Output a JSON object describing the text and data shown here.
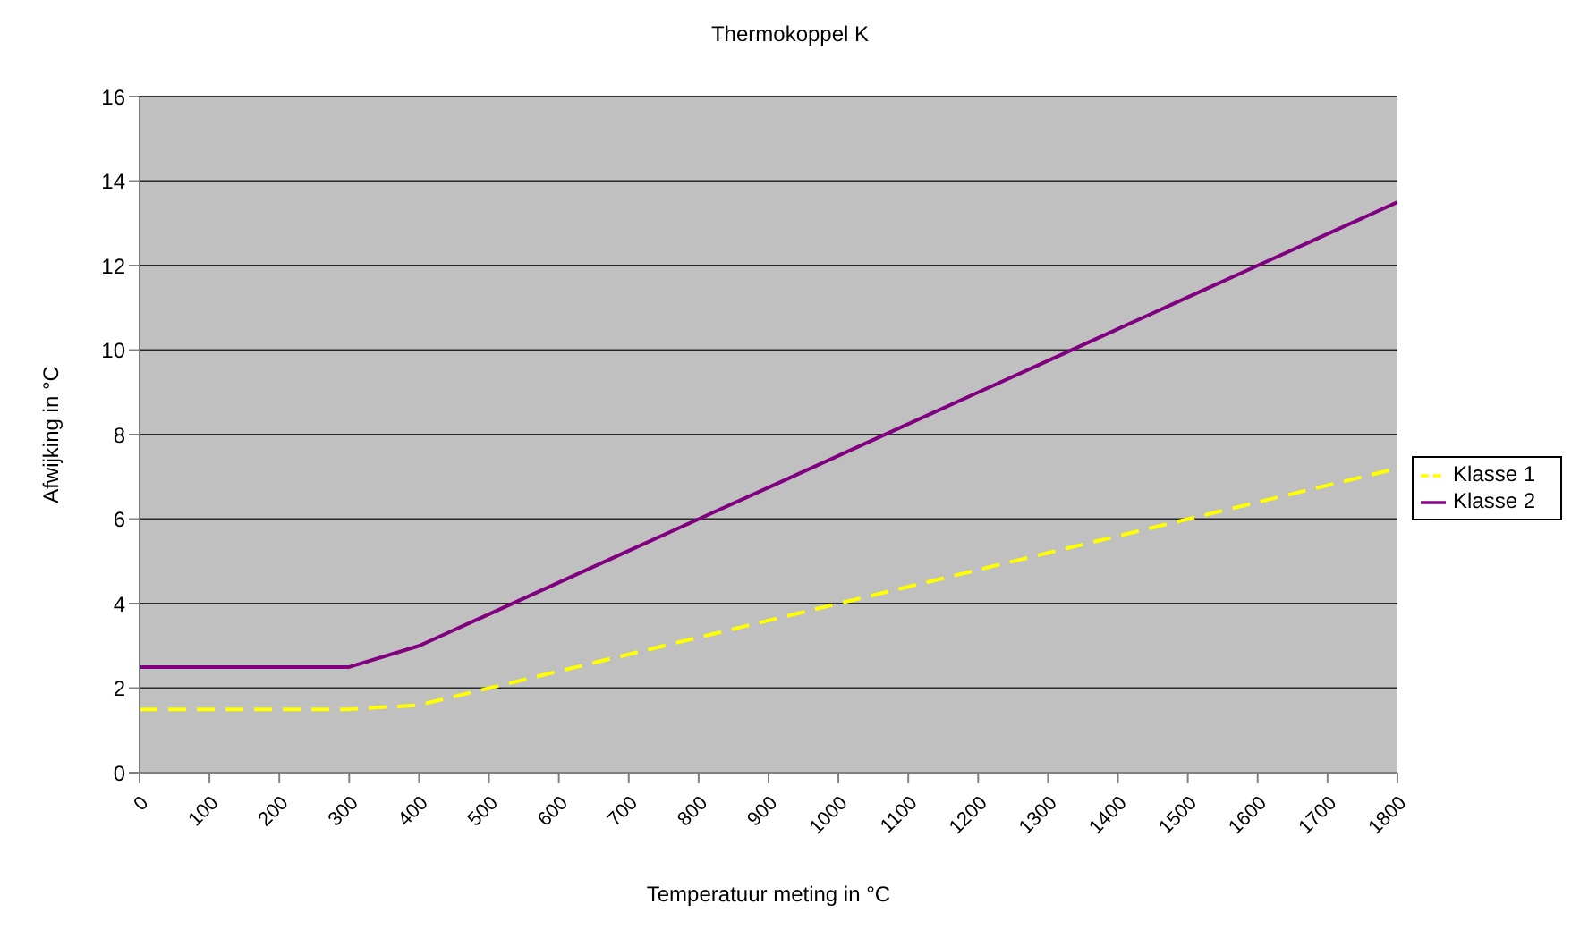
{
  "chart_data": {
    "type": "line",
    "title": "Thermokoppel K",
    "xlabel": "Temperatuur meting in °C",
    "ylabel": "Afwijking in °C",
    "x": [
      0,
      100,
      200,
      300,
      400,
      500,
      600,
      700,
      800,
      900,
      1000,
      1100,
      1200,
      1300,
      1400,
      1500,
      1600,
      1700,
      1800
    ],
    "series": [
      {
        "name": "Klasse 1",
        "color": "#ffff00",
        "line_style": "dashed",
        "values": [
          1.5,
          1.5,
          1.5,
          1.5,
          1.6,
          2.0,
          2.4,
          2.8,
          3.2,
          3.6,
          4.0,
          4.4,
          4.8,
          5.2,
          5.6,
          6.0,
          6.4,
          6.8,
          7.2
        ]
      },
      {
        "name": "Klasse 2",
        "color": "#800080",
        "line_style": "solid",
        "values": [
          2.5,
          2.5,
          2.5,
          2.5,
          3.0,
          3.75,
          4.5,
          5.25,
          6.0,
          6.75,
          7.5,
          8.25,
          9.0,
          9.75,
          10.5,
          11.25,
          12.0,
          12.75,
          13.5
        ]
      }
    ],
    "xlim": [
      0,
      1800
    ],
    "xticks": [
      0,
      100,
      200,
      300,
      400,
      500,
      600,
      700,
      800,
      900,
      1000,
      1100,
      1200,
      1300,
      1400,
      1500,
      1600,
      1700,
      1800
    ],
    "ylim": [
      0,
      16
    ],
    "yticks": [
      0,
      2,
      4,
      6,
      8,
      10,
      12,
      14,
      16
    ],
    "grid": "y",
    "legend": "right",
    "marker": "none"
  }
}
